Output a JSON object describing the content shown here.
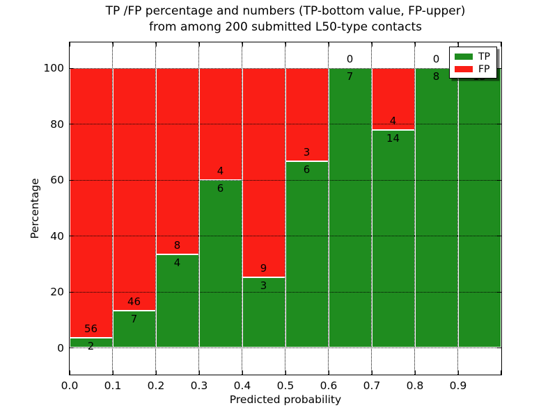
{
  "chart_data": {
    "type": "bar",
    "subtype": "stacked-percentage",
    "title_line1": "TP /FP percentage and numbers (TP-bottom value, FP-upper)",
    "title_line2": "from among 200 submitted L50-type contacts",
    "xlabel": "Predicted probability",
    "ylabel": "Percentage",
    "categories": [
      "0.0",
      "0.1",
      "0.2",
      "0.3",
      "0.4",
      "0.5",
      "0.6",
      "0.7",
      "0.8",
      "0.9"
    ],
    "bin_width": 0.1,
    "series": [
      {
        "name": "TP",
        "color": "#1f8c1f",
        "values": [
          2,
          7,
          4,
          6,
          3,
          6,
          7,
          14,
          8,
          13
        ]
      },
      {
        "name": "FP",
        "color": "#fa1e16",
        "values": [
          56,
          46,
          8,
          4,
          9,
          3,
          0,
          4,
          0,
          0
        ]
      }
    ],
    "x_tick_labels": [
      "0.0",
      "0.1",
      "0.2",
      "0.3",
      "0.4",
      "0.5",
      "0.6",
      "0.7",
      "0.8",
      "0.9"
    ],
    "y_ticks": [
      0,
      20,
      40,
      60,
      80,
      100
    ],
    "y_tick_labels": [
      "0",
      "20",
      "40",
      "60",
      "80",
      "100"
    ],
    "xlim": [
      0.0,
      1.0
    ],
    "ylim": [
      -9.5,
      109.5
    ],
    "grid": {
      "style": "dotted",
      "color": "#000000",
      "x": true,
      "y": true
    },
    "bar_edge_color": "#ffffff",
    "legend": {
      "position": "upper right",
      "entries": [
        {
          "label": "TP",
          "color": "#1f8c1f"
        },
        {
          "label": "FP",
          "color": "#fa1e16"
        }
      ]
    }
  }
}
